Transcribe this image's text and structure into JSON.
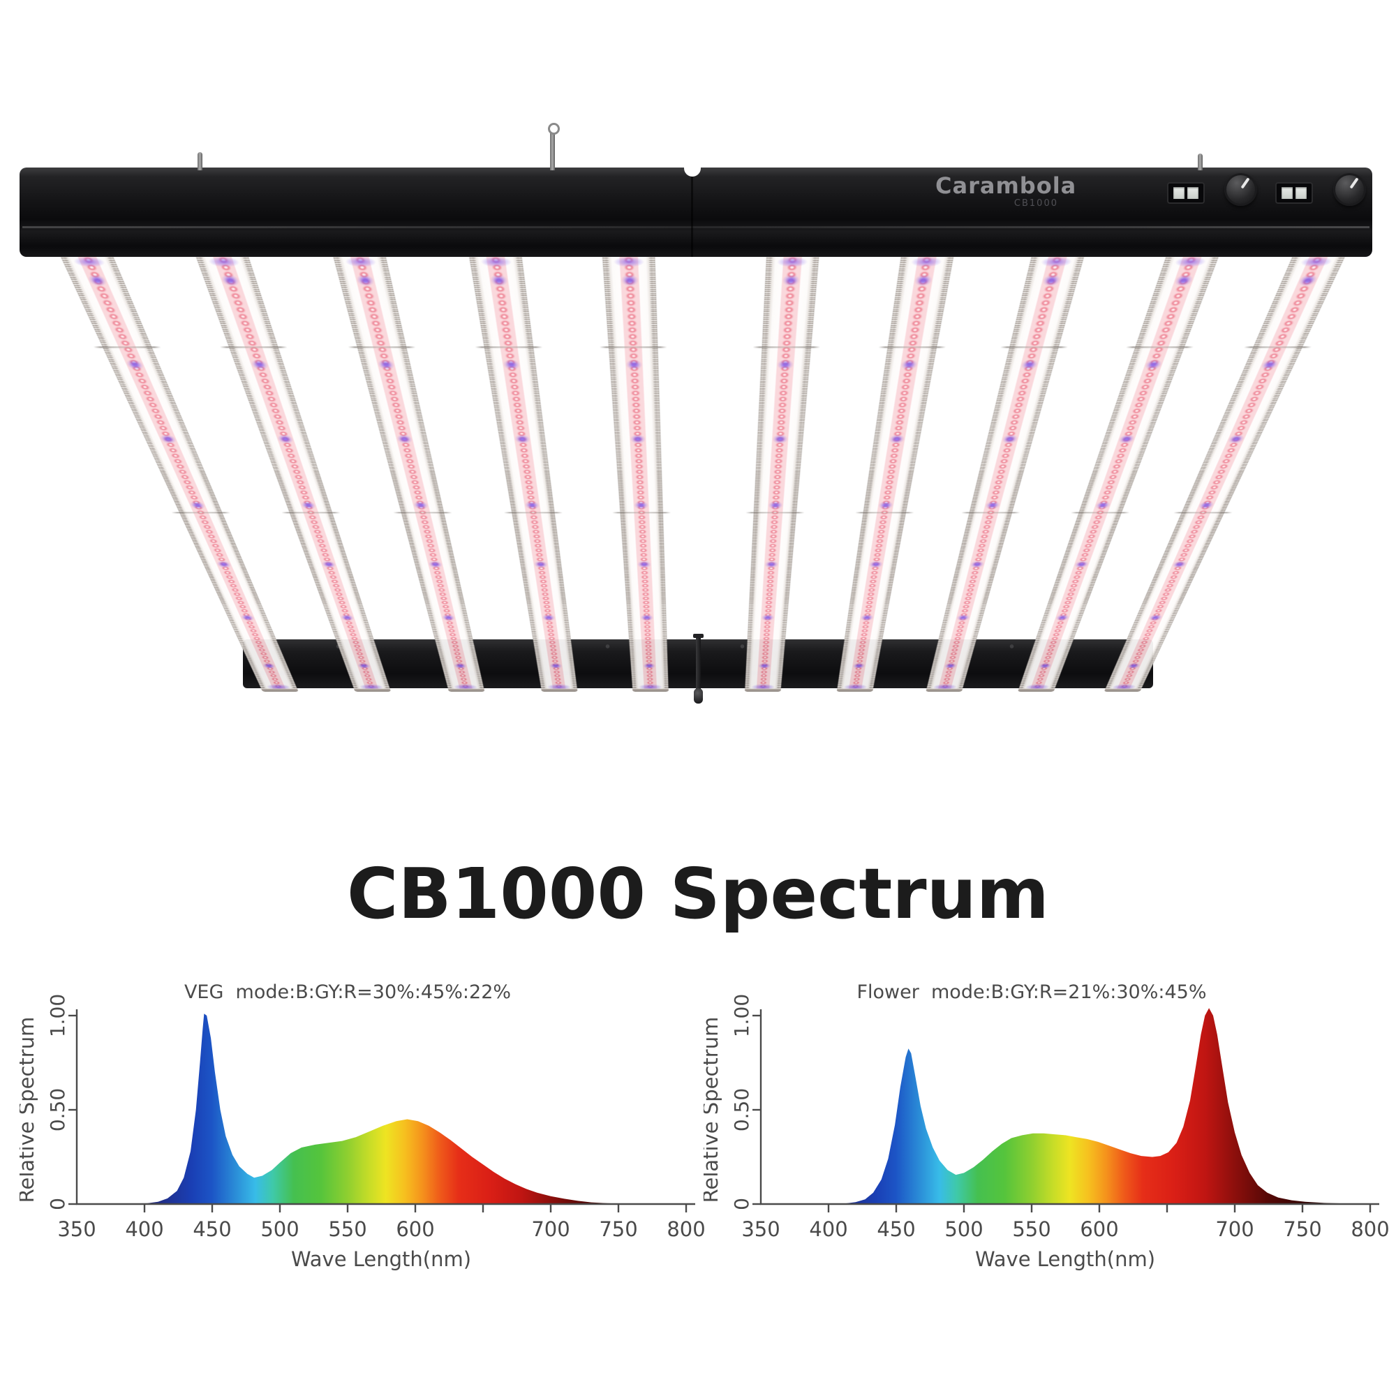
{
  "page": {
    "title": "CB1000 Spectrum"
  },
  "product": {
    "brand": "Carambola",
    "model": "CB1000",
    "bar_count": 10,
    "colors": {
      "rail": "#121214",
      "bar_body": "#faf7f5",
      "led_pink": "#ec7487",
      "led_violet": "#7e56e8",
      "bar_edge": "#b0a7a0"
    }
  },
  "spectrum_stops": [
    [
      400,
      "#23246f"
    ],
    [
      435,
      "#1a3fb5"
    ],
    [
      450,
      "#1c55c6"
    ],
    [
      468,
      "#2b8fd8"
    ],
    [
      482,
      "#38bce8"
    ],
    [
      495,
      "#3fc9a8"
    ],
    [
      510,
      "#45c050"
    ],
    [
      530,
      "#55c43c"
    ],
    [
      550,
      "#8ecf30"
    ],
    [
      565,
      "#c4dc28"
    ],
    [
      578,
      "#eee422"
    ],
    [
      592,
      "#f6c01f"
    ],
    [
      605,
      "#f5921c"
    ],
    [
      618,
      "#ef5a1a"
    ],
    [
      632,
      "#e62e18"
    ],
    [
      655,
      "#da1f16"
    ],
    [
      678,
      "#c01512"
    ],
    [
      700,
      "#8c0f0c"
    ],
    [
      725,
      "#550806"
    ],
    [
      760,
      "#2a0403"
    ],
    [
      800,
      "#180202"
    ]
  ],
  "chart_data": [
    {
      "type": "area",
      "mode": "VEG",
      "title": "VEG  mode:B:GY:R=30%:45%:22%",
      "ratio": {
        "B": "30%",
        "GY": "45%",
        "R": "22%"
      },
      "xlabel": "Wave Length(nm)",
      "ylabel": "Relative Spectrum",
      "xlim": [
        350,
        800
      ],
      "ylim": [
        0,
        1.05
      ],
      "grid": false,
      "yticks": [
        {
          "v": 0,
          "label": "0"
        },
        {
          "v": 0.5,
          "label": "0.50"
        },
        {
          "v": 1,
          "label": "1.00"
        }
      ],
      "xticks": [
        {
          "nm": 350,
          "label": "350"
        },
        {
          "nm": 400,
          "label": "400"
        },
        {
          "nm": 450,
          "label": "450"
        },
        {
          "nm": 500,
          "label": "500"
        },
        {
          "nm": 550,
          "label": "550"
        },
        {
          "nm": 600,
          "label": "600"
        },
        {
          "nm": 650,
          "label": ""
        },
        {
          "nm": 700,
          "label": "700"
        },
        {
          "nm": 750,
          "label": "750"
        },
        {
          "nm": 800,
          "label": "800"
        }
      ],
      "points": [
        [
          350,
          0
        ],
        [
          402,
          0.004
        ],
        [
          410,
          0.012
        ],
        [
          417,
          0.03
        ],
        [
          424,
          0.07
        ],
        [
          429,
          0.14
        ],
        [
          434,
          0.28
        ],
        [
          438,
          0.5
        ],
        [
          441,
          0.75
        ],
        [
          443,
          0.93
        ],
        [
          444,
          1.01
        ],
        [
          446,
          1.0
        ],
        [
          449,
          0.88
        ],
        [
          452,
          0.7
        ],
        [
          456,
          0.5
        ],
        [
          460,
          0.36
        ],
        [
          465,
          0.26
        ],
        [
          470,
          0.2
        ],
        [
          476,
          0.16
        ],
        [
          481,
          0.14
        ],
        [
          487,
          0.15
        ],
        [
          494,
          0.18
        ],
        [
          500,
          0.22
        ],
        [
          508,
          0.27
        ],
        [
          516,
          0.3
        ],
        [
          526,
          0.315
        ],
        [
          536,
          0.325
        ],
        [
          546,
          0.335
        ],
        [
          556,
          0.355
        ],
        [
          566,
          0.385
        ],
        [
          576,
          0.415
        ],
        [
          586,
          0.44
        ],
        [
          594,
          0.45
        ],
        [
          602,
          0.44
        ],
        [
          610,
          0.415
        ],
        [
          618,
          0.38
        ],
        [
          626,
          0.34
        ],
        [
          634,
          0.295
        ],
        [
          642,
          0.25
        ],
        [
          650,
          0.21
        ],
        [
          658,
          0.17
        ],
        [
          666,
          0.135
        ],
        [
          674,
          0.105
        ],
        [
          682,
          0.08
        ],
        [
          690,
          0.06
        ],
        [
          700,
          0.042
        ],
        [
          710,
          0.028
        ],
        [
          720,
          0.017
        ],
        [
          730,
          0.009
        ],
        [
          742,
          0.004
        ],
        [
          760,
          0.001
        ],
        [
          800,
          0
        ]
      ]
    },
    {
      "type": "area",
      "mode": "Flower",
      "title": "Flower  mode:B:GY:R=21%:30%:45%",
      "ratio": {
        "B": "21%",
        "GY": "30%",
        "R": "45%"
      },
      "xlabel": "Wave Length(nm)",
      "ylabel": "Relative Spectrum",
      "xlim": [
        350,
        800
      ],
      "ylim": [
        0,
        1.05
      ],
      "grid": false,
      "yticks": [
        {
          "v": 0,
          "label": "0"
        },
        {
          "v": 0.5,
          "label": "0.50"
        },
        {
          "v": 1,
          "label": "1.00"
        }
      ],
      "xticks": [
        {
          "nm": 350,
          "label": "350"
        },
        {
          "nm": 400,
          "label": "400"
        },
        {
          "nm": 450,
          "label": "450"
        },
        {
          "nm": 500,
          "label": "500"
        },
        {
          "nm": 550,
          "label": "550"
        },
        {
          "nm": 600,
          "label": "600"
        },
        {
          "nm": 650,
          "label": ""
        },
        {
          "nm": 700,
          "label": "700"
        },
        {
          "nm": 750,
          "label": "750"
        },
        {
          "nm": 800,
          "label": "800"
        }
      ],
      "points": [
        [
          350,
          0
        ],
        [
          412,
          0.003
        ],
        [
          420,
          0.01
        ],
        [
          427,
          0.025
        ],
        [
          433,
          0.06
        ],
        [
          439,
          0.13
        ],
        [
          444,
          0.24
        ],
        [
          449,
          0.42
        ],
        [
          453,
          0.62
        ],
        [
          457,
          0.78
        ],
        [
          459,
          0.825
        ],
        [
          461,
          0.8
        ],
        [
          464,
          0.68
        ],
        [
          468,
          0.52
        ],
        [
          472,
          0.4
        ],
        [
          477,
          0.3
        ],
        [
          482,
          0.23
        ],
        [
          488,
          0.18
        ],
        [
          494,
          0.155
        ],
        [
          500,
          0.165
        ],
        [
          507,
          0.195
        ],
        [
          514,
          0.235
        ],
        [
          521,
          0.28
        ],
        [
          528,
          0.32
        ],
        [
          535,
          0.35
        ],
        [
          543,
          0.365
        ],
        [
          551,
          0.375
        ],
        [
          559,
          0.375
        ],
        [
          567,
          0.37
        ],
        [
          575,
          0.365
        ],
        [
          583,
          0.355
        ],
        [
          591,
          0.345
        ],
        [
          599,
          0.33
        ],
        [
          607,
          0.31
        ],
        [
          615,
          0.29
        ],
        [
          623,
          0.27
        ],
        [
          631,
          0.255
        ],
        [
          639,
          0.25
        ],
        [
          645,
          0.255
        ],
        [
          651,
          0.275
        ],
        [
          657,
          0.325
        ],
        [
          662,
          0.41
        ],
        [
          667,
          0.55
        ],
        [
          671,
          0.72
        ],
        [
          675,
          0.9
        ],
        [
          678,
          1.0
        ],
        [
          681,
          1.04
        ],
        [
          684,
          1.0
        ],
        [
          687,
          0.9
        ],
        [
          691,
          0.72
        ],
        [
          695,
          0.54
        ],
        [
          700,
          0.38
        ],
        [
          705,
          0.26
        ],
        [
          711,
          0.165
        ],
        [
          717,
          0.1
        ],
        [
          724,
          0.06
        ],
        [
          732,
          0.035
        ],
        [
          742,
          0.02
        ],
        [
          752,
          0.012
        ],
        [
          766,
          0.006
        ],
        [
          782,
          0.003
        ],
        [
          800,
          0.001
        ]
      ]
    }
  ]
}
